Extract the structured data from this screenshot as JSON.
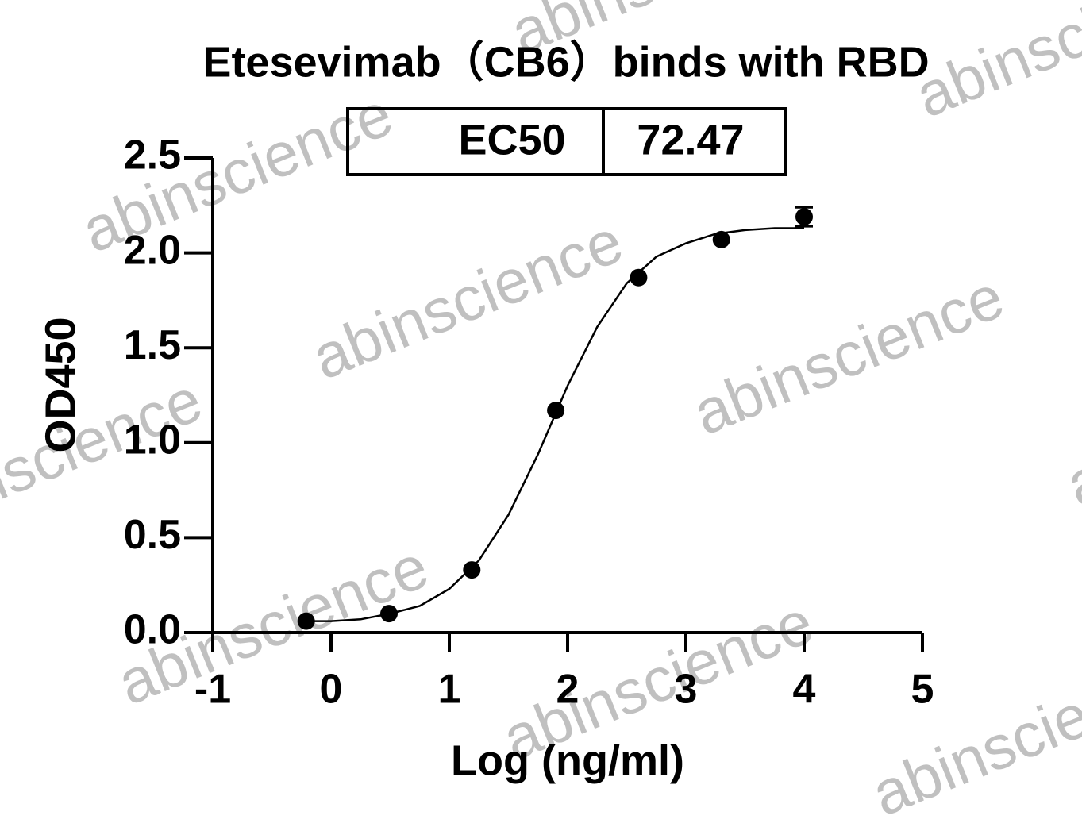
{
  "chart_data": {
    "type": "scatter",
    "title": "Etesevimab（CB6）binds with RBD",
    "xlabel": "Log (ng/ml)",
    "ylabel": "OD450",
    "ec50_label": "EC50",
    "ec50": 72.47,
    "watermark": "abinscience",
    "xlim": [
      -1,
      5
    ],
    "xticks": [
      -1,
      0,
      1,
      2,
      3,
      4,
      5
    ],
    "ylim": [
      0,
      2.5
    ],
    "yticks": [
      {
        "value": 0,
        "label": "0.0"
      },
      0.5,
      {
        "value": 1,
        "label": "1.0"
      },
      1.5,
      {
        "value": 2,
        "label": "2.0"
      },
      2.5
    ],
    "points": {
      "color": "#000000",
      "x": [
        -0.21,
        0.49,
        1.19,
        1.9,
        2.6,
        3.3,
        4.0
      ],
      "values": [
        0.06,
        0.1,
        0.33,
        1.17,
        1.87,
        2.07,
        2.19
      ],
      "errors": [
        null,
        null,
        null,
        null,
        null,
        null,
        0.05
      ]
    },
    "curve": {
      "color": "#000000",
      "x": [
        -0.21,
        0,
        0.25,
        0.5,
        0.75,
        1.0,
        1.25,
        1.5,
        1.75,
        2.0,
        2.25,
        2.5,
        2.75,
        3.0,
        3.25,
        3.5,
        3.75,
        4.0
      ],
      "values": [
        0.06,
        0.06,
        0.07,
        0.1,
        0.14,
        0.23,
        0.38,
        0.62,
        0.94,
        1.3,
        1.61,
        1.84,
        1.98,
        2.05,
        2.1,
        2.12,
        2.13,
        2.13
      ]
    }
  }
}
